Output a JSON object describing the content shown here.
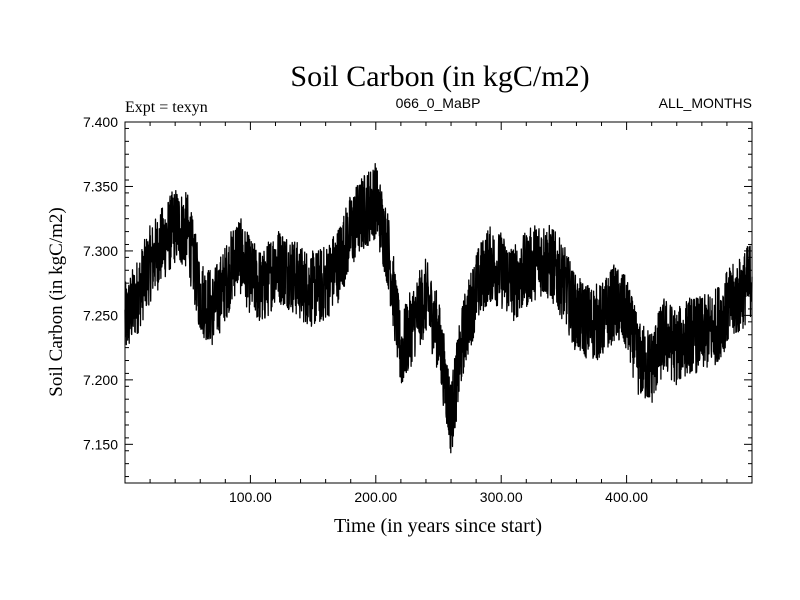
{
  "chart_data": {
    "type": "line",
    "title": "Soil Carbon (in kgC/m2)",
    "subtitle_left": "Expt = texyn",
    "subtitle_center": "066_0_MaBP",
    "subtitle_right": "ALL_MONTHS",
    "xlabel": "Time (in years since start)",
    "ylabel": "Soil Carbon (in kgC/m2)",
    "xlim": [
      0,
      500
    ],
    "ylim": [
      7.12,
      7.4
    ],
    "x_ticks": [
      100,
      200,
      300,
      400
    ],
    "x_tick_labels": [
      "100.00",
      "200.00",
      "300.00",
      "400.00"
    ],
    "y_ticks": [
      7.15,
      7.2,
      7.25,
      7.3,
      7.35,
      7.4
    ],
    "y_tick_labels": [
      "7.150",
      "7.200",
      "7.250",
      "7.300",
      "7.350",
      "7.400"
    ],
    "grid": false,
    "line_color": "#000000",
    "series": [
      {
        "x": [
          0,
          10,
          20,
          30,
          40,
          50,
          60,
          70,
          80,
          90,
          100,
          110,
          120,
          130,
          140,
          150,
          160,
          170,
          180,
          190,
          200,
          210,
          220,
          230,
          240,
          250,
          260,
          270,
          280,
          290,
          300,
          310,
          320,
          330,
          340,
          350,
          360,
          370,
          380,
          390,
          400,
          410,
          420,
          430,
          440,
          450,
          460,
          470,
          480,
          490,
          500
        ],
        "values": [
          7.245,
          7.265,
          7.29,
          7.305,
          7.32,
          7.315,
          7.265,
          7.255,
          7.275,
          7.3,
          7.28,
          7.27,
          7.29,
          7.285,
          7.275,
          7.27,
          7.275,
          7.29,
          7.315,
          7.33,
          7.34,
          7.3,
          7.22,
          7.245,
          7.265,
          7.235,
          7.17,
          7.235,
          7.27,
          7.29,
          7.285,
          7.275,
          7.285,
          7.295,
          7.29,
          7.275,
          7.25,
          7.245,
          7.245,
          7.26,
          7.25,
          7.215,
          7.21,
          7.235,
          7.225,
          7.235,
          7.235,
          7.24,
          7.255,
          7.265,
          7.28
        ],
        "noise_amplitude": 0.03
      }
    ]
  }
}
